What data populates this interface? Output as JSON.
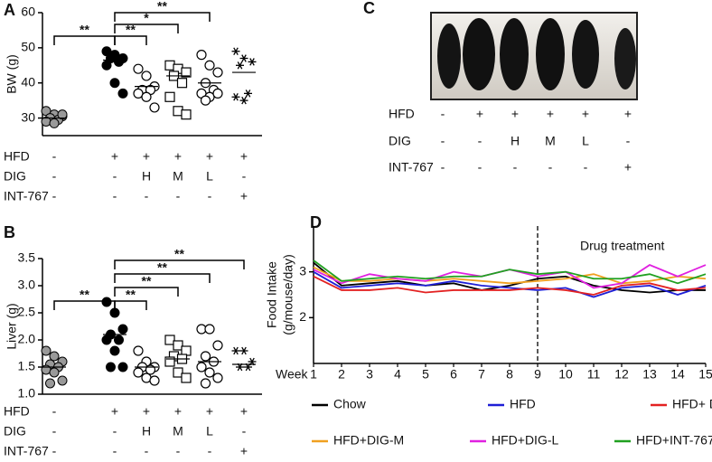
{
  "chart_data": [
    {
      "panel_label": "A",
      "type": "dotplot",
      "y_label": "BW (g)",
      "ylim": [
        25,
        60
      ],
      "yticks": [
        30,
        40,
        50,
        60
      ],
      "groups": [
        {
          "marker": "filled-circle",
          "color": "#999999",
          "values": [
            32,
            31,
            30.5,
            30,
            29.5,
            29,
            28.5,
            31
          ],
          "mean": 30
        },
        {
          "marker": "filled-circle",
          "color": "#000000",
          "values": [
            49,
            48,
            47,
            47,
            46,
            45,
            40,
            37
          ],
          "mean": 46.5
        },
        {
          "marker": "open-circle",
          "color": "#000000",
          "values": [
            44,
            42,
            39,
            38,
            38,
            37,
            36,
            33
          ],
          "mean": 39
        },
        {
          "marker": "open-square",
          "color": "#000000",
          "values": [
            45,
            44,
            43,
            42,
            40,
            36,
            32,
            31
          ],
          "mean": 42
        },
        {
          "marker": "open-circle",
          "color": "#000000",
          "values": [
            48,
            45,
            43,
            40,
            38,
            37,
            36,
            37,
            35
          ],
          "mean": 40
        },
        {
          "marker": "asterisk",
          "color": "#000000",
          "values": [
            49,
            47,
            46,
            45,
            37,
            36,
            35
          ],
          "mean": 43
        }
      ],
      "significance": [
        {
          "from": 0,
          "to": 1,
          "label": "**"
        },
        {
          "from": 1,
          "to": 2,
          "label": "**"
        },
        {
          "from": 1,
          "to": 3,
          "label": "*"
        },
        {
          "from": 1,
          "to": 4,
          "label": "**"
        }
      ],
      "treatments": [
        {
          "label": "HFD",
          "values": [
            "-",
            "+",
            "+",
            "+",
            "+",
            "+"
          ]
        },
        {
          "label": "DIG",
          "values": [
            "-",
            "-",
            "H",
            "M",
            "L",
            "-"
          ]
        },
        {
          "label": "INT-767",
          "values": [
            "-",
            "-",
            "-",
            "-",
            "-",
            "+"
          ]
        }
      ]
    },
    {
      "panel_label": "B",
      "type": "dotplot",
      "y_label": "Liver (g)",
      "ylim": [
        1,
        3.5
      ],
      "yticks": [
        {
          "value": 1,
          "label": "1.0"
        },
        1.5,
        {
          "value": 2,
          "label": "2.0"
        },
        2.5,
        {
          "value": 3,
          "label": "3.0"
        },
        3.5
      ],
      "groups": [
        {
          "marker": "filled-circle",
          "color": "#999999",
          "values": [
            1.8,
            1.7,
            1.6,
            1.55,
            1.5,
            1.45,
            1.4,
            1.25,
            1.2
          ],
          "mean": 1.5
        },
        {
          "marker": "filled-circle",
          "color": "#000000",
          "values": [
            2.7,
            2.5,
            2.2,
            2.1,
            2.0,
            2.0,
            1.8,
            1.5,
            1.5
          ],
          "mean": 2.1
        },
        {
          "marker": "open-circle",
          "color": "#000000",
          "values": [
            1.8,
            1.6,
            1.5,
            1.5,
            1.45,
            1.4,
            1.3,
            1.25
          ],
          "mean": 1.5
        },
        {
          "marker": "open-square",
          "color": "#000000",
          "values": [
            2.0,
            1.9,
            1.8,
            1.7,
            1.65,
            1.6,
            1.4,
            1.3
          ],
          "mean": 1.65
        },
        {
          "marker": "open-circle",
          "color": "#000000",
          "values": [
            2.2,
            2.2,
            1.9,
            1.7,
            1.6,
            1.5,
            1.4,
            1.3,
            1.2
          ],
          "mean": 1.6
        },
        {
          "marker": "asterisk",
          "color": "#000000",
          "values": [
            1.8,
            1.8,
            1.6,
            1.5,
            1.5
          ],
          "mean": 1.55
        }
      ],
      "significance": [
        {
          "from": 0,
          "to": 1,
          "label": "**"
        },
        {
          "from": 1,
          "to": 2,
          "label": "**"
        },
        {
          "from": 1,
          "to": 3,
          "label": "**"
        },
        {
          "from": 1,
          "to": 4,
          "label": "**"
        },
        {
          "from": 1,
          "to": 5,
          "label": "**"
        }
      ],
      "treatments": [
        {
          "label": "HFD",
          "values": [
            "-",
            "+",
            "+",
            "+",
            "+",
            "+"
          ]
        },
        {
          "label": "DIG",
          "values": [
            "-",
            "-",
            "H",
            "M",
            "L",
            "-"
          ]
        },
        {
          "label": "INT-767",
          "values": [
            "-",
            "-",
            "-",
            "-",
            "-",
            "+"
          ]
        }
      ]
    },
    {
      "panel_label": "C",
      "type": "image",
      "treatments": [
        {
          "label": "HFD",
          "values": [
            "-",
            "+",
            "+",
            "+",
            "+",
            "+"
          ]
        },
        {
          "label": "DIG",
          "values": [
            "-",
            "-",
            "H",
            "M",
            "L",
            "-"
          ]
        },
        {
          "label": "INT-767",
          "values": [
            "-",
            "-",
            "-",
            "-",
            "-",
            "+"
          ]
        }
      ]
    },
    {
      "panel_label": "D",
      "type": "line",
      "y_label": [
        "Food Intake",
        "(g/mouse/day)"
      ],
      "x_label": "Week",
      "x": [
        1,
        2,
        3,
        4,
        5,
        6,
        7,
        8,
        9,
        10,
        11,
        12,
        13,
        14,
        15
      ],
      "xlim": [
        1,
        15
      ],
      "xticks": [
        1,
        2,
        3,
        4,
        5,
        6,
        7,
        8,
        9,
        10,
        11,
        12,
        13,
        14,
        15
      ],
      "ylim": [
        1,
        4
      ],
      "yticks": [
        2,
        3
      ],
      "treatment_start": 9,
      "annotation": "Drug treatment",
      "series": [
        {
          "name": "Chow",
          "color": "#000000",
          "values": [
            3.2,
            2.7,
            2.75,
            2.8,
            2.7,
            2.75,
            2.6,
            2.7,
            2.85,
            2.9,
            2.7,
            2.6,
            2.55,
            2.6,
            2.6
          ]
        },
        {
          "name": "HFD",
          "color": "#1f1fd6",
          "values": [
            3.0,
            2.65,
            2.7,
            2.75,
            2.7,
            2.8,
            2.7,
            2.65,
            2.6,
            2.65,
            2.45,
            2.65,
            2.7,
            2.5,
            2.7
          ]
        },
        {
          "name": "HFD+ DIG-H",
          "color": "#e32222",
          "values": [
            2.9,
            2.6,
            2.6,
            2.65,
            2.55,
            2.6,
            2.6,
            2.6,
            2.65,
            2.6,
            2.5,
            2.7,
            2.75,
            2.6,
            2.65
          ]
        },
        {
          "name": "HFD+DIG-M",
          "color": "#f0a020",
          "values": [
            3.1,
            2.8,
            2.8,
            2.85,
            2.8,
            2.85,
            2.8,
            2.75,
            2.8,
            2.85,
            2.95,
            2.75,
            2.8,
            2.9,
            2.85
          ]
        },
        {
          "name": "HFD+DIG-L",
          "color": "#e020e0",
          "values": [
            3.05,
            2.75,
            2.95,
            2.85,
            2.8,
            3.0,
            2.9,
            3.05,
            2.9,
            3.0,
            2.65,
            2.75,
            3.15,
            2.9,
            3.15
          ]
        },
        {
          "name": "HFD+INT-767",
          "color": "#20a020",
          "values": [
            3.25,
            2.8,
            2.85,
            2.9,
            2.85,
            2.9,
            2.9,
            3.05,
            2.95,
            3.0,
            2.85,
            2.85,
            2.95,
            2.75,
            2.95
          ]
        }
      ]
    }
  ]
}
